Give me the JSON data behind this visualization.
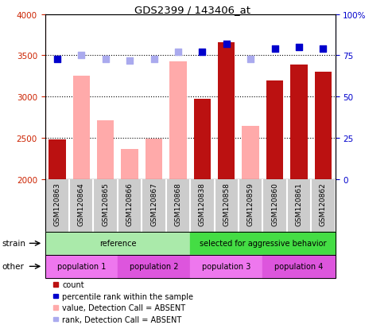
{
  "title": "GDS2399 / 143406_at",
  "samples": [
    "GSM120863",
    "GSM120864",
    "GSM120865",
    "GSM120866",
    "GSM120867",
    "GSM120868",
    "GSM120838",
    "GSM120858",
    "GSM120859",
    "GSM120860",
    "GSM120861",
    "GSM120862"
  ],
  "bar_bottom": 2000,
  "ylim_left": [
    2000,
    4000
  ],
  "ylim_right": [
    0,
    100
  ],
  "count_values": [
    2480,
    null,
    null,
    null,
    null,
    null,
    2970,
    3660,
    null,
    3190,
    3390,
    3300
  ],
  "absent_values": [
    null,
    3250,
    2710,
    2360,
    2490,
    3430,
    null,
    null,
    2640,
    null,
    null,
    null
  ],
  "percentile_present": [
    73,
    null,
    null,
    null,
    null,
    null,
    77,
    82,
    null,
    79,
    80,
    79
  ],
  "percentile_absent": [
    null,
    75,
    73,
    72,
    73,
    77,
    null,
    null,
    73,
    null,
    null,
    null
  ],
  "absent_rank_values": [
    null,
    null,
    74.5,
    70,
    72,
    75,
    null,
    null,
    73,
    null,
    null,
    null
  ],
  "absent_flags": [
    false,
    true,
    true,
    true,
    true,
    true,
    false,
    false,
    true,
    false,
    false,
    false
  ],
  "strain_groups": [
    {
      "label": "reference",
      "start": 0,
      "end": 6,
      "color": "#aaeaaa"
    },
    {
      "label": "selected for aggressive behavior",
      "start": 6,
      "end": 12,
      "color": "#44dd44"
    }
  ],
  "pop_groups": [
    {
      "label": "population 1",
      "start": 0,
      "end": 3,
      "color": "#ee77ee"
    },
    {
      "label": "population 2",
      "start": 3,
      "end": 6,
      "color": "#dd55dd"
    },
    {
      "label": "population 3",
      "start": 6,
      "end": 9,
      "color": "#ee77ee"
    },
    {
      "label": "population 4",
      "start": 9,
      "end": 12,
      "color": "#dd55dd"
    }
  ],
  "count_color": "#bb1111",
  "absent_bar_color": "#ffaaaa",
  "percentile_color": "#0000cc",
  "absent_rank_color": "#aaaaee",
  "absent_percentile_color": "#aaaaee",
  "grid_color": "black",
  "tick_label_color_left": "#cc2200",
  "tick_label_color_right": "#0000cc",
  "col_bg_color": "#cccccc",
  "col_sep_color": "#ffffff"
}
